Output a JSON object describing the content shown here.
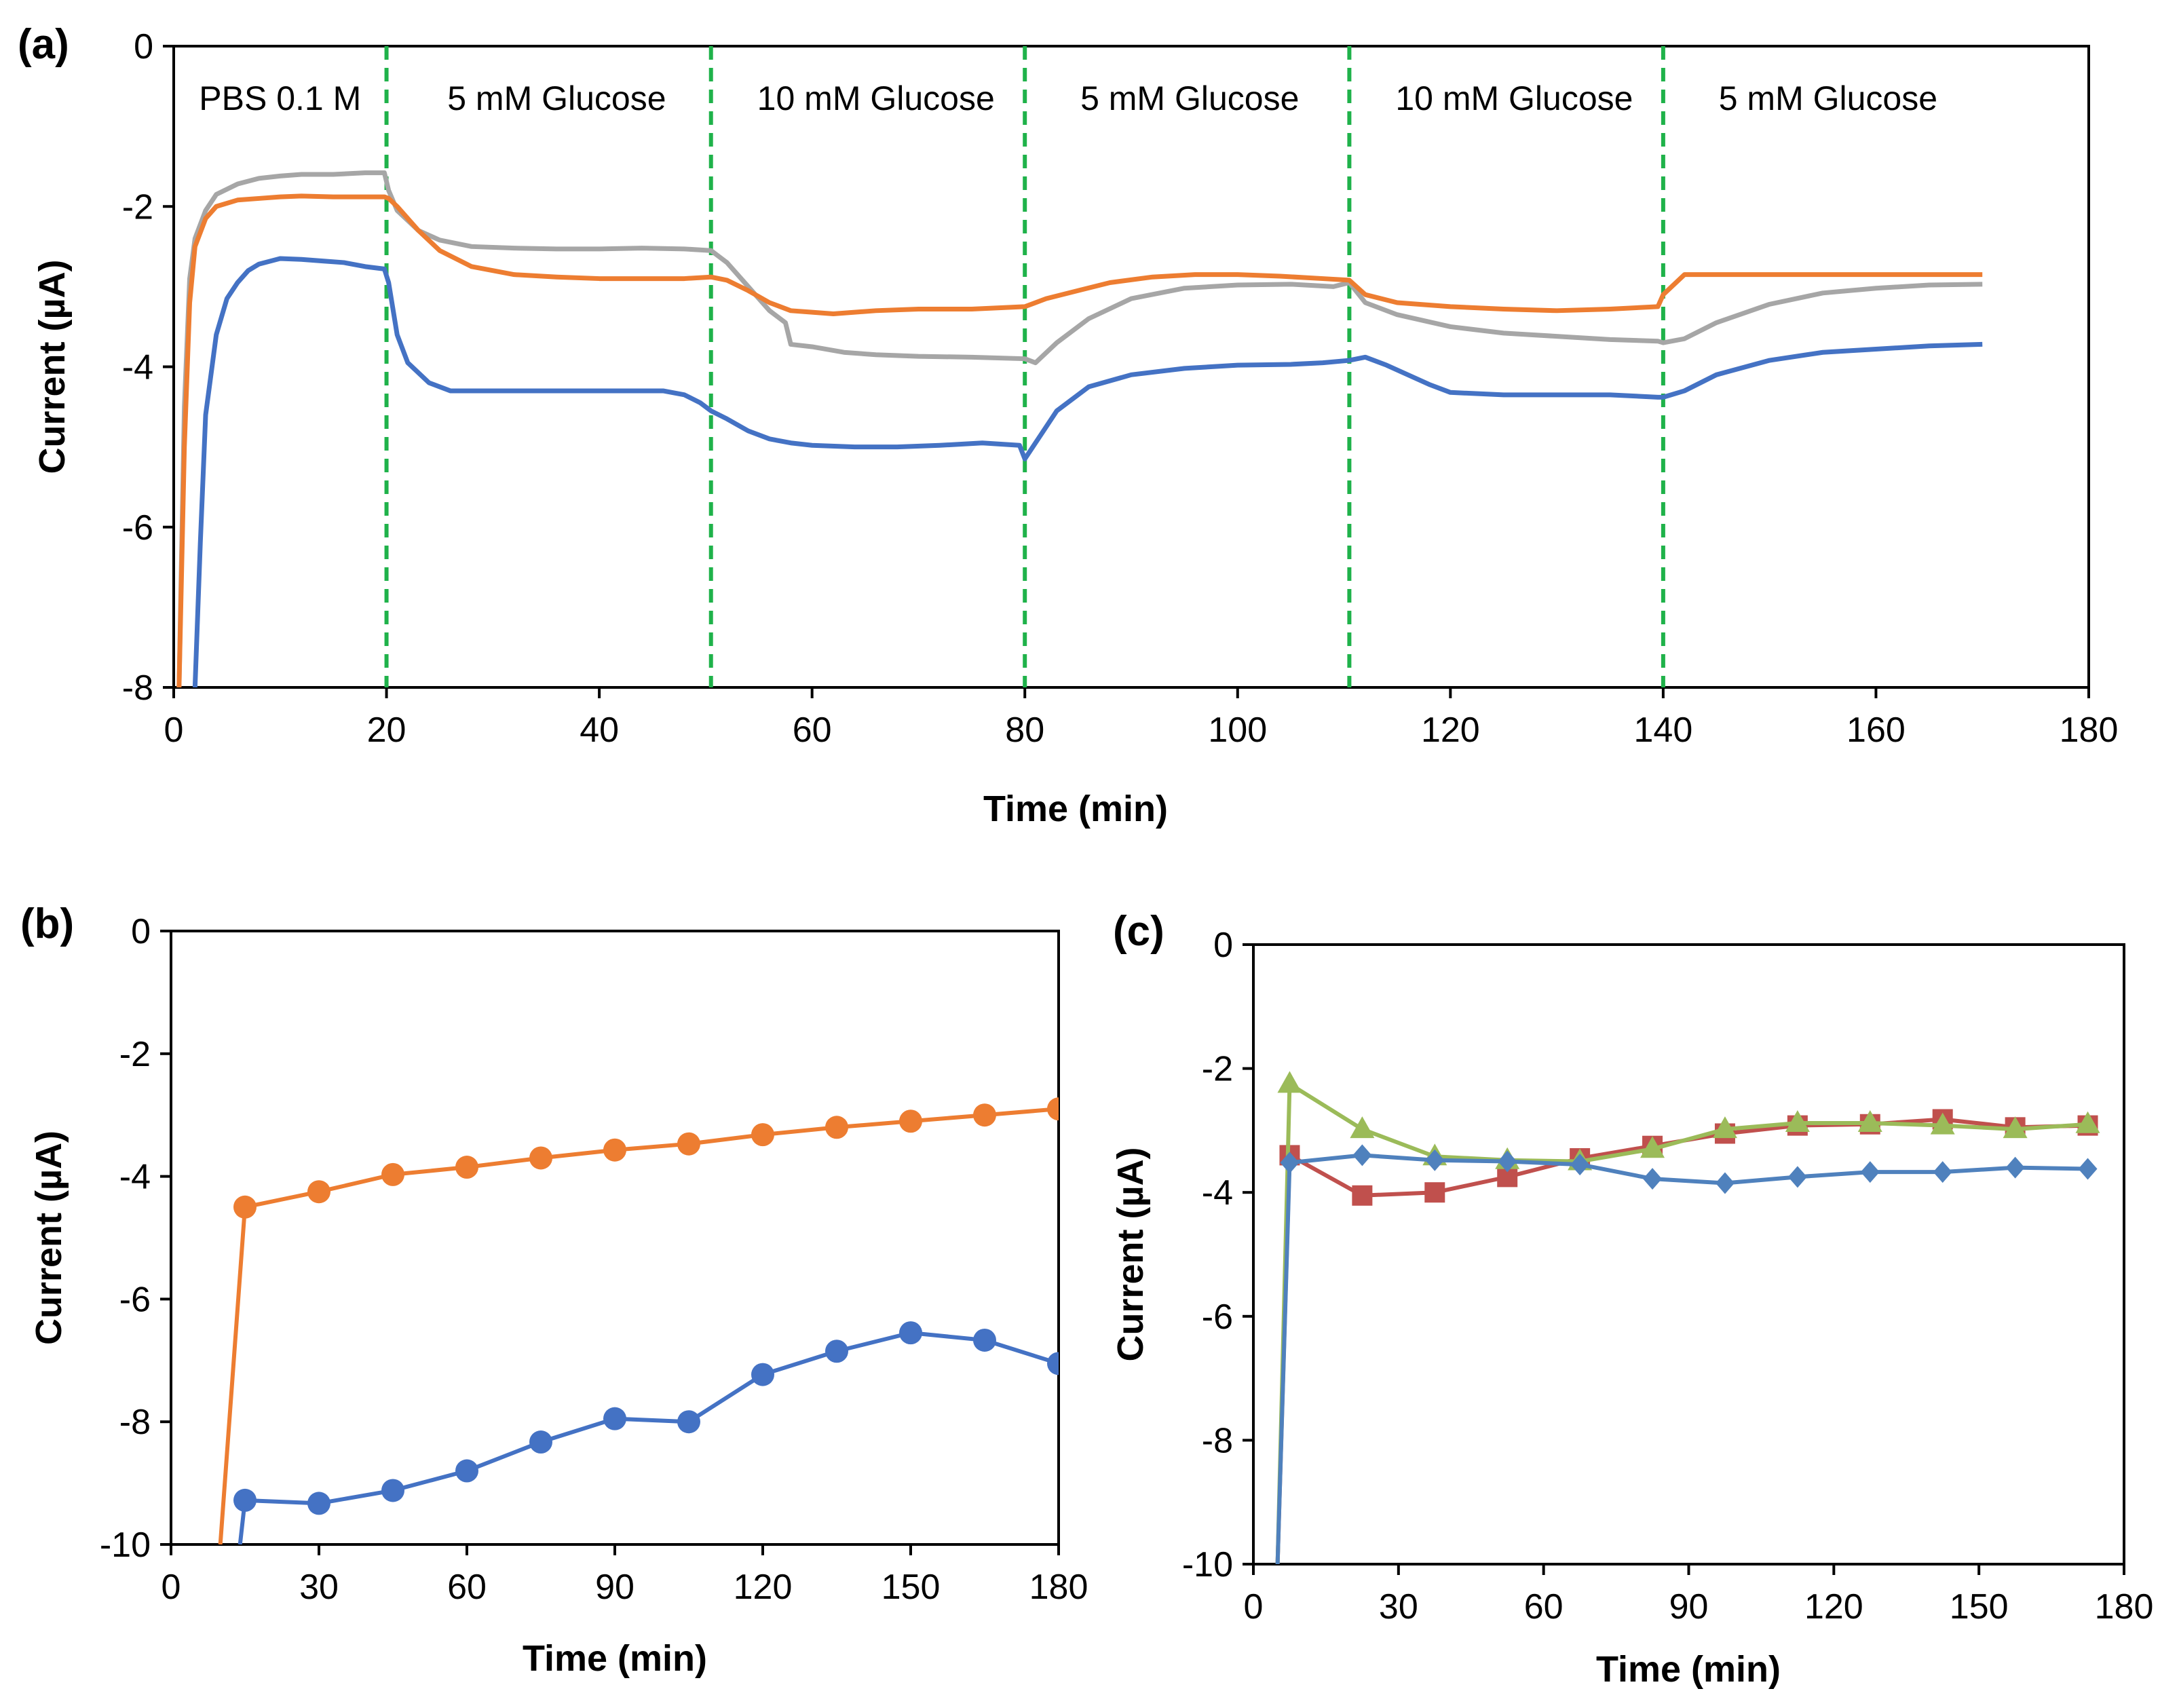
{
  "chart_data": [
    {
      "panel": "(a)",
      "type": "line",
      "xlabel": "Time (min)",
      "ylabel": "Current (µA)",
      "xlim": [
        0,
        180
      ],
      "ylim": [
        -8,
        0
      ],
      "xticks": [
        0,
        20,
        40,
        60,
        80,
        100,
        120,
        140,
        160,
        180
      ],
      "yticks": [
        0,
        -2,
        -4,
        -6,
        -8
      ],
      "vlines": [
        20,
        50.5,
        80,
        110.5,
        140
      ],
      "vline_color": "#1fb24a",
      "regions": [
        {
          "label": "PBS 0.1 M",
          "x": 10
        },
        {
          "label": "5 mM Glucose",
          "x": 36
        },
        {
          "label": "10 mM Glucose",
          "x": 66
        },
        {
          "label": "5 mM Glucose",
          "x": 95.5
        },
        {
          "label": "10 mM Glucose",
          "x": 126
        },
        {
          "label": "5 mM Glucose",
          "x": 155.5
        }
      ],
      "series": [
        {
          "name": "gray",
          "color": "#a6a6a6",
          "x": [
            0.5,
            1,
            1.5,
            2,
            3,
            4,
            6,
            8,
            10,
            12,
            15,
            18,
            19.8,
            20.2,
            21,
            23,
            25,
            28,
            32,
            36,
            40,
            44,
            48,
            50.5,
            52,
            54,
            56,
            57.5,
            58,
            60,
            63,
            66,
            70,
            75,
            80,
            81,
            83,
            86,
            90,
            95,
            100,
            105,
            109,
            110.5,
            112,
            115,
            120,
            125,
            130,
            135,
            139.5,
            140,
            142,
            145,
            150,
            155,
            160,
            165,
            170
          ],
          "y": [
            -8,
            -4.5,
            -2.9,
            -2.4,
            -2.05,
            -1.85,
            -1.72,
            -1.65,
            -1.62,
            -1.6,
            -1.6,
            -1.58,
            -1.58,
            -1.8,
            -2.05,
            -2.3,
            -2.42,
            -2.5,
            -2.52,
            -2.53,
            -2.53,
            -2.52,
            -2.53,
            -2.55,
            -2.7,
            -3.0,
            -3.3,
            -3.45,
            -3.72,
            -3.75,
            -3.82,
            -3.85,
            -3.87,
            -3.88,
            -3.9,
            -3.95,
            -3.7,
            -3.4,
            -3.15,
            -3.02,
            -2.98,
            -2.97,
            -3.0,
            -2.95,
            -3.2,
            -3.35,
            -3.5,
            -3.58,
            -3.62,
            -3.66,
            -3.68,
            -3.7,
            -3.65,
            -3.45,
            -3.22,
            -3.08,
            -3.02,
            -2.98,
            -2.97
          ]
        },
        {
          "name": "orange",
          "color": "#ed7d31",
          "x": [
            0.5,
            1,
            1.5,
            2,
            3,
            4,
            6,
            8,
            10,
            12,
            15,
            18,
            19.8,
            20.2,
            21,
            23,
            25,
            28,
            32,
            36,
            40,
            44,
            48,
            50.5,
            52,
            54,
            56,
            58,
            60,
            62,
            64,
            66,
            70,
            75,
            80,
            82,
            85,
            88,
            92,
            96,
            100,
            104,
            108,
            110.5,
            112,
            115,
            120,
            125,
            130,
            135,
            139.5,
            140,
            142,
            145,
            150,
            155,
            160,
            165,
            170
          ],
          "y": [
            -8,
            -5,
            -3.2,
            -2.5,
            -2.15,
            -2.0,
            -1.92,
            -1.9,
            -1.88,
            -1.87,
            -1.88,
            -1.88,
            -1.88,
            -1.9,
            -2.0,
            -2.3,
            -2.55,
            -2.75,
            -2.85,
            -2.88,
            -2.9,
            -2.9,
            -2.9,
            -2.88,
            -2.92,
            -3.05,
            -3.2,
            -3.3,
            -3.32,
            -3.34,
            -3.32,
            -3.3,
            -3.28,
            -3.28,
            -3.25,
            -3.15,
            -3.05,
            -2.95,
            -2.88,
            -2.85,
            -2.85,
            -2.87,
            -2.9,
            -2.92,
            -3.1,
            -3.2,
            -3.25,
            -3.28,
            -3.3,
            -3.28,
            -3.25,
            -3.1,
            -2.85,
            -2.85,
            -2.85,
            -2.85,
            -2.85,
            -2.85,
            -2.85
          ]
        },
        {
          "name": "blue",
          "color": "#4472c4",
          "x": [
            2,
            2.5,
            3,
            4,
            5,
            6,
            7,
            8,
            10,
            12,
            14,
            16,
            18,
            19.8,
            20.2,
            21,
            22,
            24,
            26,
            30,
            34,
            38,
            42,
            46,
            48,
            49.5,
            50.5,
            52,
            54,
            56,
            58,
            60,
            64,
            68,
            72,
            76,
            79.5,
            80,
            81,
            83,
            86,
            90,
            95,
            100,
            105,
            108,
            110.5,
            112,
            114,
            116,
            118,
            120,
            125,
            130,
            135,
            139.5,
            140,
            142,
            145,
            150,
            155,
            160,
            165,
            170
          ],
          "y": [
            -8,
            -6.2,
            -4.6,
            -3.6,
            -3.15,
            -2.95,
            -2.8,
            -2.72,
            -2.65,
            -2.66,
            -2.68,
            -2.7,
            -2.75,
            -2.78,
            -2.95,
            -3.6,
            -3.95,
            -4.2,
            -4.3,
            -4.3,
            -4.3,
            -4.3,
            -4.3,
            -4.3,
            -4.35,
            -4.45,
            -4.55,
            -4.65,
            -4.8,
            -4.9,
            -4.95,
            -4.98,
            -5.0,
            -5.0,
            -4.98,
            -4.95,
            -4.98,
            -5.15,
            -4.95,
            -4.55,
            -4.25,
            -4.1,
            -4.02,
            -3.98,
            -3.97,
            -3.95,
            -3.92,
            -3.88,
            -3.98,
            -4.1,
            -4.22,
            -4.32,
            -4.35,
            -4.35,
            -4.35,
            -4.38,
            -4.38,
            -4.3,
            -4.1,
            -3.92,
            -3.82,
            -3.78,
            -3.74,
            -3.72
          ]
        }
      ]
    },
    {
      "panel": "(b)",
      "type": "line",
      "xlabel": "Time (min)",
      "ylabel": "Current (µA)",
      "xlim": [
        0,
        180
      ],
      "ylim": [
        -10,
        0
      ],
      "xticks": [
        0,
        30,
        60,
        90,
        120,
        150,
        180
      ],
      "yticks": [
        0,
        -2,
        -4,
        -6,
        -8,
        -10
      ],
      "series": [
        {
          "name": "orange",
          "color": "#ed7d31",
          "marker": "circle",
          "points": [
            [
              15,
              -4.5
            ],
            [
              30,
              -4.25
            ],
            [
              45,
              -3.97
            ],
            [
              60,
              -3.85
            ],
            [
              75,
              -3.7
            ],
            [
              90,
              -3.57
            ],
            [
              105,
              -3.47
            ],
            [
              120,
              -3.32
            ],
            [
              135,
              -3.2
            ],
            [
              150,
              -3.1
            ],
            [
              165,
              -3.0
            ],
            [
              180,
              -2.9
            ]
          ],
          "lead_in": [
            10,
            -10
          ]
        },
        {
          "name": "blue",
          "color": "#4472c4",
          "marker": "circle",
          "points": [
            [
              15,
              -9.28
            ],
            [
              30,
              -9.33
            ],
            [
              45,
              -9.12
            ],
            [
              60,
              -8.8
            ],
            [
              75,
              -8.33
            ],
            [
              90,
              -7.95
            ],
            [
              105,
              -8.0
            ],
            [
              120,
              -7.23
            ],
            [
              135,
              -6.85
            ],
            [
              150,
              -6.55
            ],
            [
              165,
              -6.67
            ],
            [
              180,
              -7.05
            ]
          ],
          "lead_in": [
            14,
            -10
          ]
        }
      ]
    },
    {
      "panel": "(c)",
      "type": "line",
      "xlabel": "Time (min)",
      "ylabel": "Current (µA)",
      "xlim": [
        0,
        180
      ],
      "ylim": [
        -10,
        0
      ],
      "xticks": [
        0,
        30,
        60,
        90,
        120,
        150,
        180
      ],
      "yticks": [
        0,
        -2,
        -4,
        -6,
        -8,
        -10
      ],
      "series": [
        {
          "name": "red",
          "color": "#c0504d",
          "marker": "square",
          "points": [
            [
              7.5,
              -3.4
            ],
            [
              22.5,
              -4.05
            ],
            [
              37.5,
              -4.0
            ],
            [
              52.5,
              -3.75
            ],
            [
              67.5,
              -3.45
            ],
            [
              82.5,
              -3.25
            ],
            [
              97.5,
              -3.05
            ],
            [
              112.5,
              -2.92
            ],
            [
              127.5,
              -2.9
            ],
            [
              142.5,
              -2.82
            ],
            [
              157.5,
              -2.95
            ],
            [
              172.5,
              -2.92
            ]
          ],
          "lead_in": [
            5,
            -10
          ]
        },
        {
          "name": "green",
          "color": "#9bbb59",
          "marker": "triangle",
          "points": [
            [
              7.5,
              -2.25
            ],
            [
              22.5,
              -2.98
            ],
            [
              37.5,
              -3.42
            ],
            [
              52.5,
              -3.48
            ],
            [
              67.5,
              -3.5
            ],
            [
              82.5,
              -3.3
            ],
            [
              97.5,
              -2.98
            ],
            [
              112.5,
              -2.88
            ],
            [
              127.5,
              -2.88
            ],
            [
              142.5,
              -2.92
            ],
            [
              157.5,
              -2.98
            ],
            [
              172.5,
              -2.9
            ]
          ],
          "lead_in": [
            5,
            -10
          ]
        },
        {
          "name": "blue",
          "color": "#4f81bd",
          "marker": "diamond",
          "points": [
            [
              7.5,
              -3.52
            ],
            [
              22.5,
              -3.4
            ],
            [
              37.5,
              -3.48
            ],
            [
              52.5,
              -3.5
            ],
            [
              67.5,
              -3.55
            ],
            [
              82.5,
              -3.78
            ],
            [
              97.5,
              -3.85
            ],
            [
              112.5,
              -3.75
            ],
            [
              127.5,
              -3.67
            ],
            [
              142.5,
              -3.67
            ],
            [
              157.5,
              -3.6
            ],
            [
              172.5,
              -3.62
            ]
          ],
          "lead_in": [
            5,
            -10
          ]
        }
      ]
    }
  ]
}
